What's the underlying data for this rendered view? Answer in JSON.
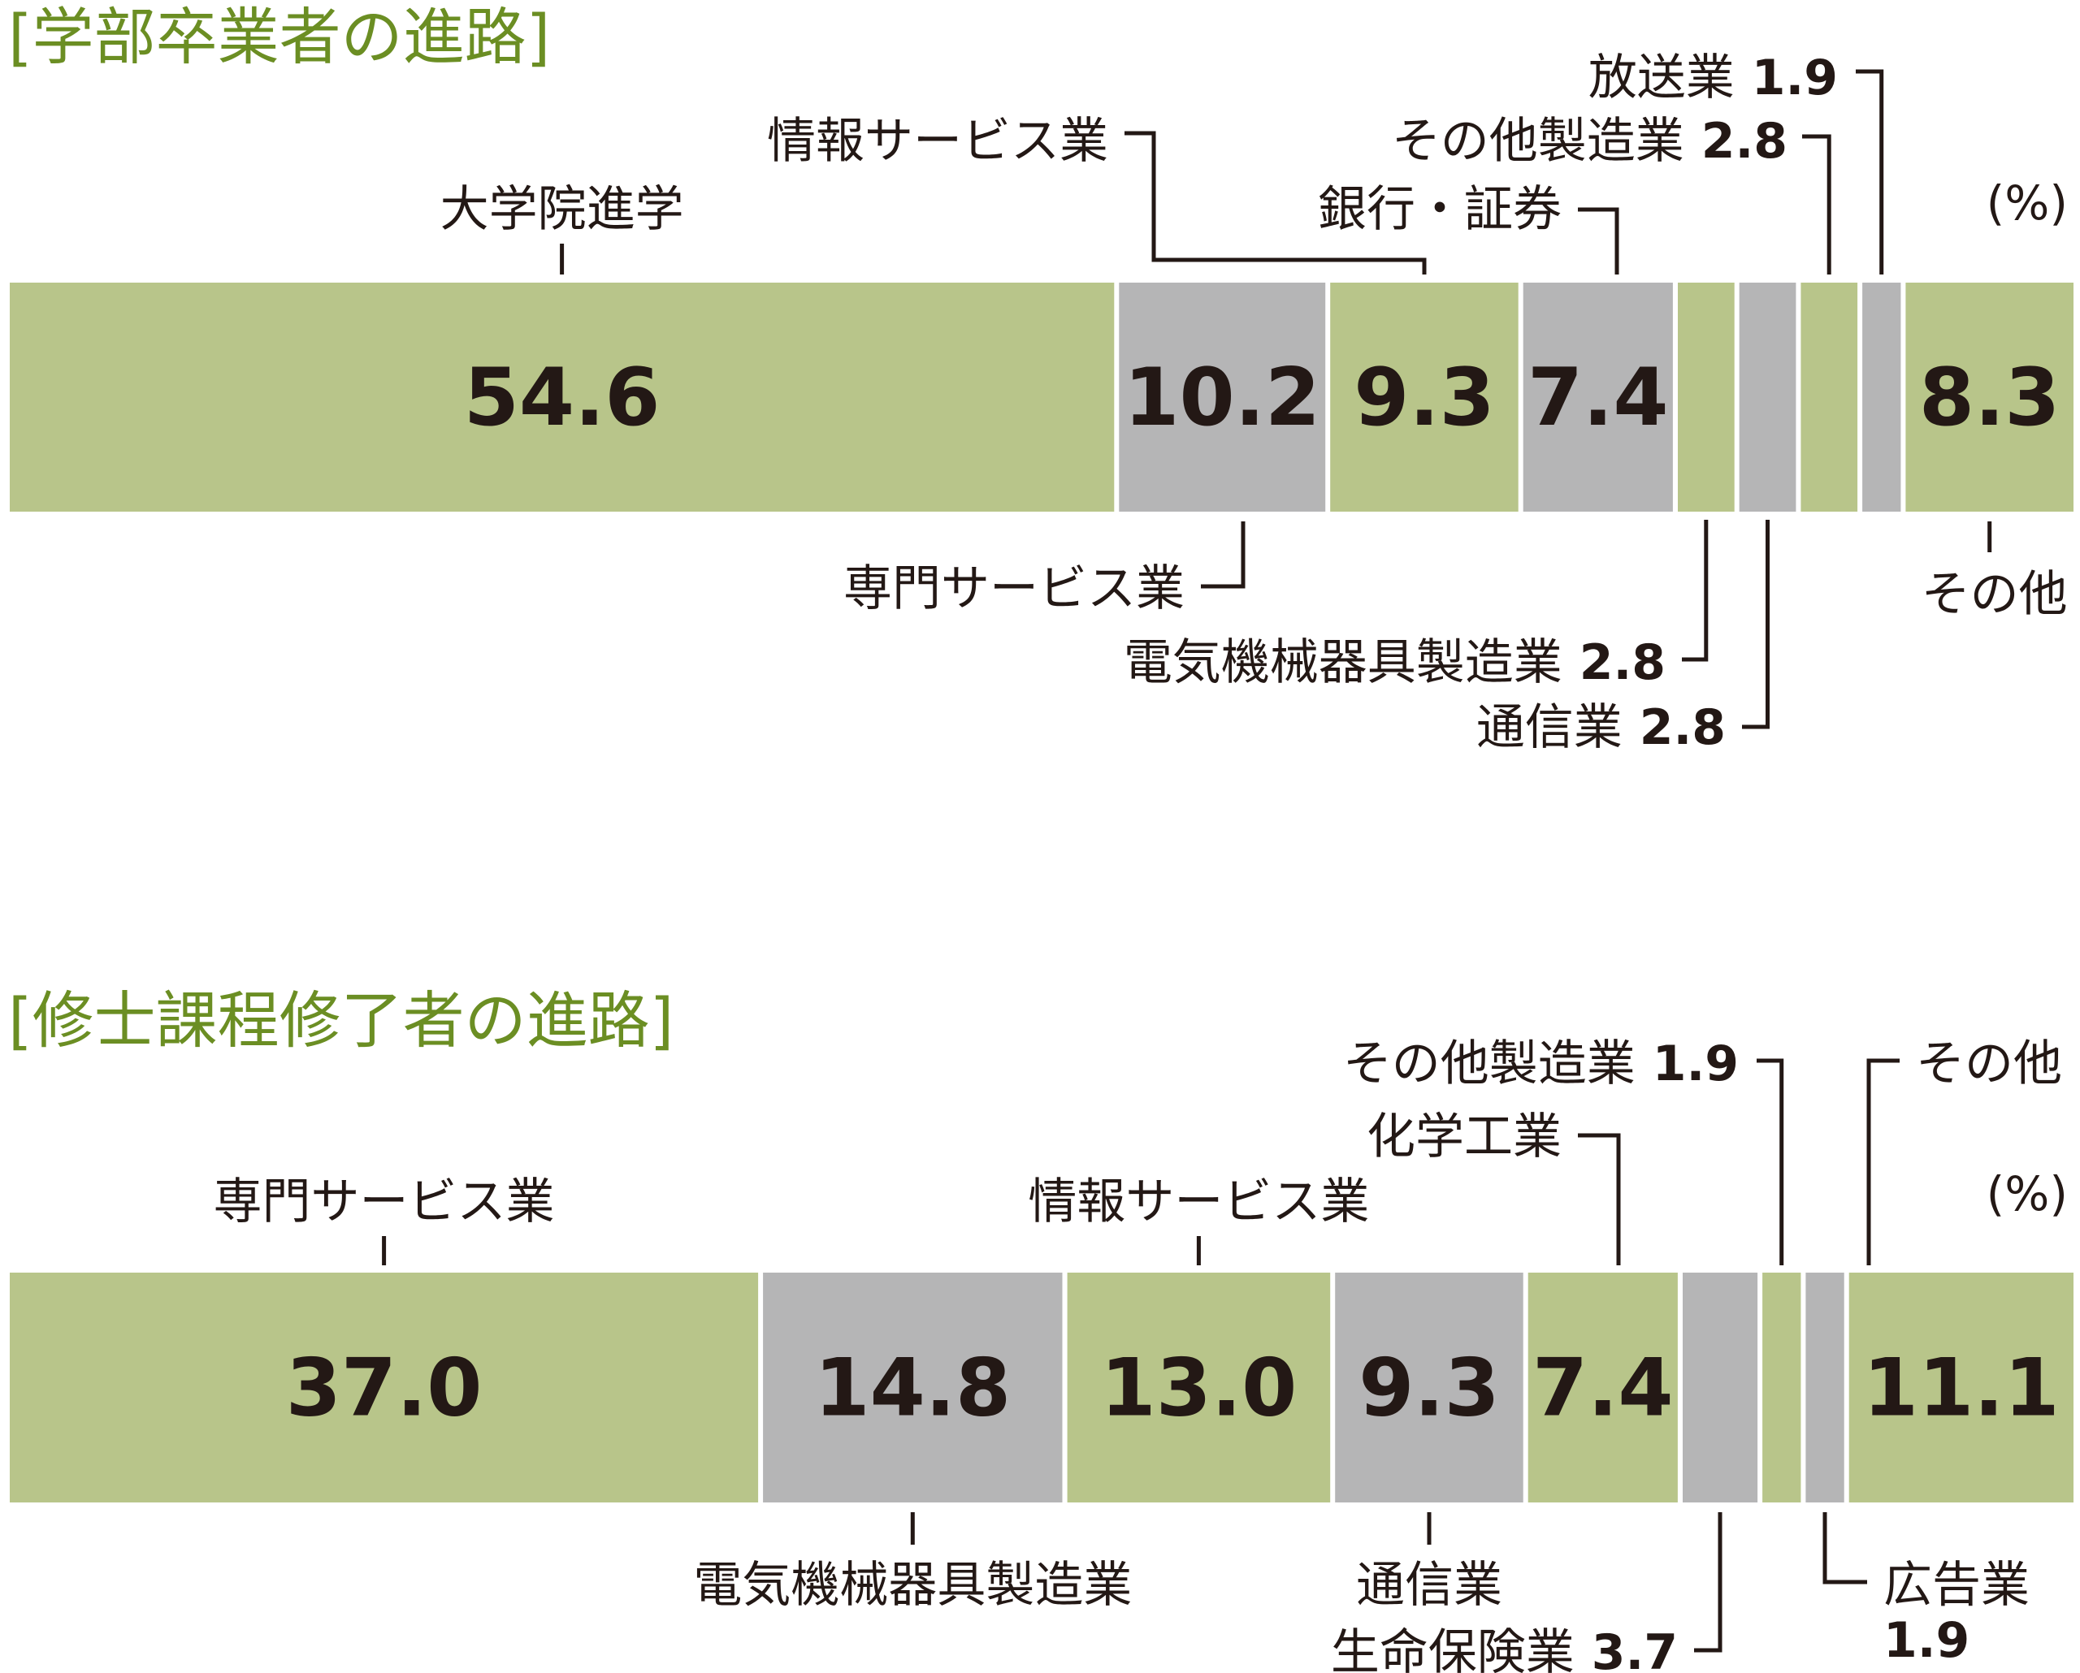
{
  "colors": {
    "green": "#b8c58a",
    "gray": "#b5b5b6",
    "title": "#6b8e23",
    "text": "#231815"
  },
  "percent_unit": "(%)",
  "chart_data": [
    {
      "type": "bar",
      "orientation": "horizontal-stacked",
      "title": "[学部卒業者の進路]",
      "unit": "%",
      "segments": [
        {
          "name": "大学院進学",
          "value": 54.6,
          "color": "green",
          "value_label": "54.6"
        },
        {
          "name": "専門サービス業",
          "value": 10.2,
          "color": "gray",
          "value_label": "10.2"
        },
        {
          "name": "情報サービス業",
          "value": 9.3,
          "color": "green",
          "value_label": "9.3"
        },
        {
          "name": "銀行・証券",
          "value": 7.4,
          "color": "gray",
          "value_label": "7.4"
        },
        {
          "name": "電気機械器具製造業",
          "value": 2.8,
          "color": "green",
          "value_label": "2.8"
        },
        {
          "name": "通信業",
          "value": 2.8,
          "color": "gray",
          "value_label": "2.8"
        },
        {
          "name": "その他製造業",
          "value": 2.8,
          "color": "green",
          "value_label": "2.8"
        },
        {
          "name": "放送業",
          "value": 1.9,
          "color": "gray",
          "value_label": "1.9"
        },
        {
          "name": "その他",
          "value": 8.3,
          "color": "green",
          "value_label": "8.3"
        }
      ]
    },
    {
      "type": "bar",
      "orientation": "horizontal-stacked",
      "title": "[修士課程修了者の進路]",
      "unit": "%",
      "segments": [
        {
          "name": "専門サービス業",
          "value": 37.0,
          "color": "green",
          "value_label": "37.0"
        },
        {
          "name": "電気機械器具製造業",
          "value": 14.8,
          "color": "gray",
          "value_label": "14.8"
        },
        {
          "name": "情報サービス業",
          "value": 13.0,
          "color": "green",
          "value_label": "13.0"
        },
        {
          "name": "通信業",
          "value": 9.3,
          "color": "gray",
          "value_label": "9.3"
        },
        {
          "name": "化学工業",
          "value": 7.4,
          "color": "green",
          "value_label": "7.4"
        },
        {
          "name": "生命保険業",
          "value": 3.7,
          "color": "gray",
          "value_label": "3.7"
        },
        {
          "name": "その他製造業",
          "value": 1.9,
          "color": "green",
          "value_label": "1.9"
        },
        {
          "name": "広告業",
          "value": 1.9,
          "color": "gray",
          "value_label": "1.9"
        },
        {
          "name": "その他",
          "value": 11.1,
          "color": "green",
          "value_label": "11.1"
        }
      ]
    }
  ]
}
